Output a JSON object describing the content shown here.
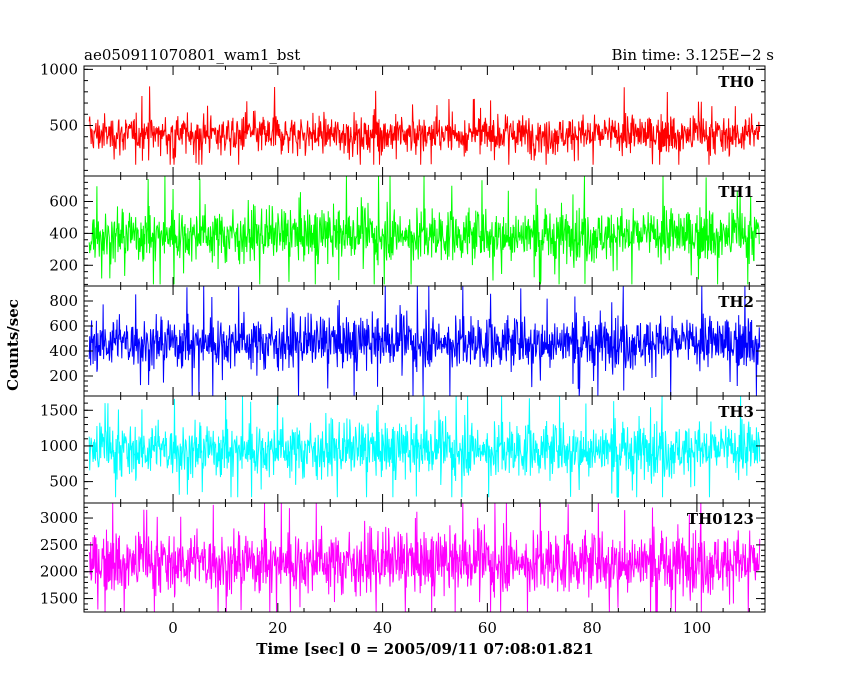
{
  "header": {
    "left_title": "ae050911070801_wam1_bst",
    "right_title": "Bin time: 3.125E−2 s"
  },
  "axes": {
    "xlabel": "Time [sec] 0 = 2005/09/11 07:08:01.821",
    "ylabel": "Counts/sec"
  },
  "chart_data": {
    "type": "line",
    "title": "ae050911070801_wam1_bst",
    "subtitle": "Bin time: 3.125E−2 s",
    "xlabel": "Time [sec] 0 = 2005/09/11 07:08:01.821",
    "ylabel": "Counts/sec",
    "xlim": [
      -17,
      113
    ],
    "x_range_of_data": [
      -16,
      112
    ],
    "bin_time": 0.03125,
    "xticks": [
      0,
      20,
      40,
      60,
      80,
      100
    ],
    "grid": false,
    "legend": "none",
    "series": [
      {
        "name": "TH0",
        "color": "#ff0000",
        "ylim": [
          50,
          1030
        ],
        "yticks": [
          500,
          1000
        ],
        "mean": 420,
        "typical_low": 200,
        "typical_high": 650,
        "max": 1030,
        "min": 150
      },
      {
        "name": "TH1",
        "color": "#00ff00",
        "ylim": [
          70,
          760
        ],
        "yticks": [
          200,
          400,
          600
        ],
        "mean": 390,
        "typical_low": 170,
        "typical_high": 600,
        "max": 760,
        "min": 80
      },
      {
        "name": "TH2",
        "color": "#0000ff",
        "ylim": [
          40,
          920
        ],
        "yticks": [
          200,
          400,
          600,
          800
        ],
        "mean": 470,
        "typical_low": 200,
        "typical_high": 740,
        "max": 920,
        "min": 40
      },
      {
        "name": "TH3",
        "color": "#00ffff",
        "ylim": [
          200,
          1700
        ],
        "yticks": [
          500,
          1000,
          1500
        ],
        "mean": 950,
        "typical_low": 450,
        "typical_high": 1450,
        "max": 1700,
        "min": 280
      },
      {
        "name": "TH0123",
        "color": "#ff00ff",
        "ylim": [
          1250,
          3280
        ],
        "yticks": [
          1500,
          2000,
          2500,
          3000
        ],
        "mean": 2180,
        "typical_low": 1450,
        "typical_high": 2950,
        "max": 3280,
        "min": 1250
      }
    ]
  }
}
